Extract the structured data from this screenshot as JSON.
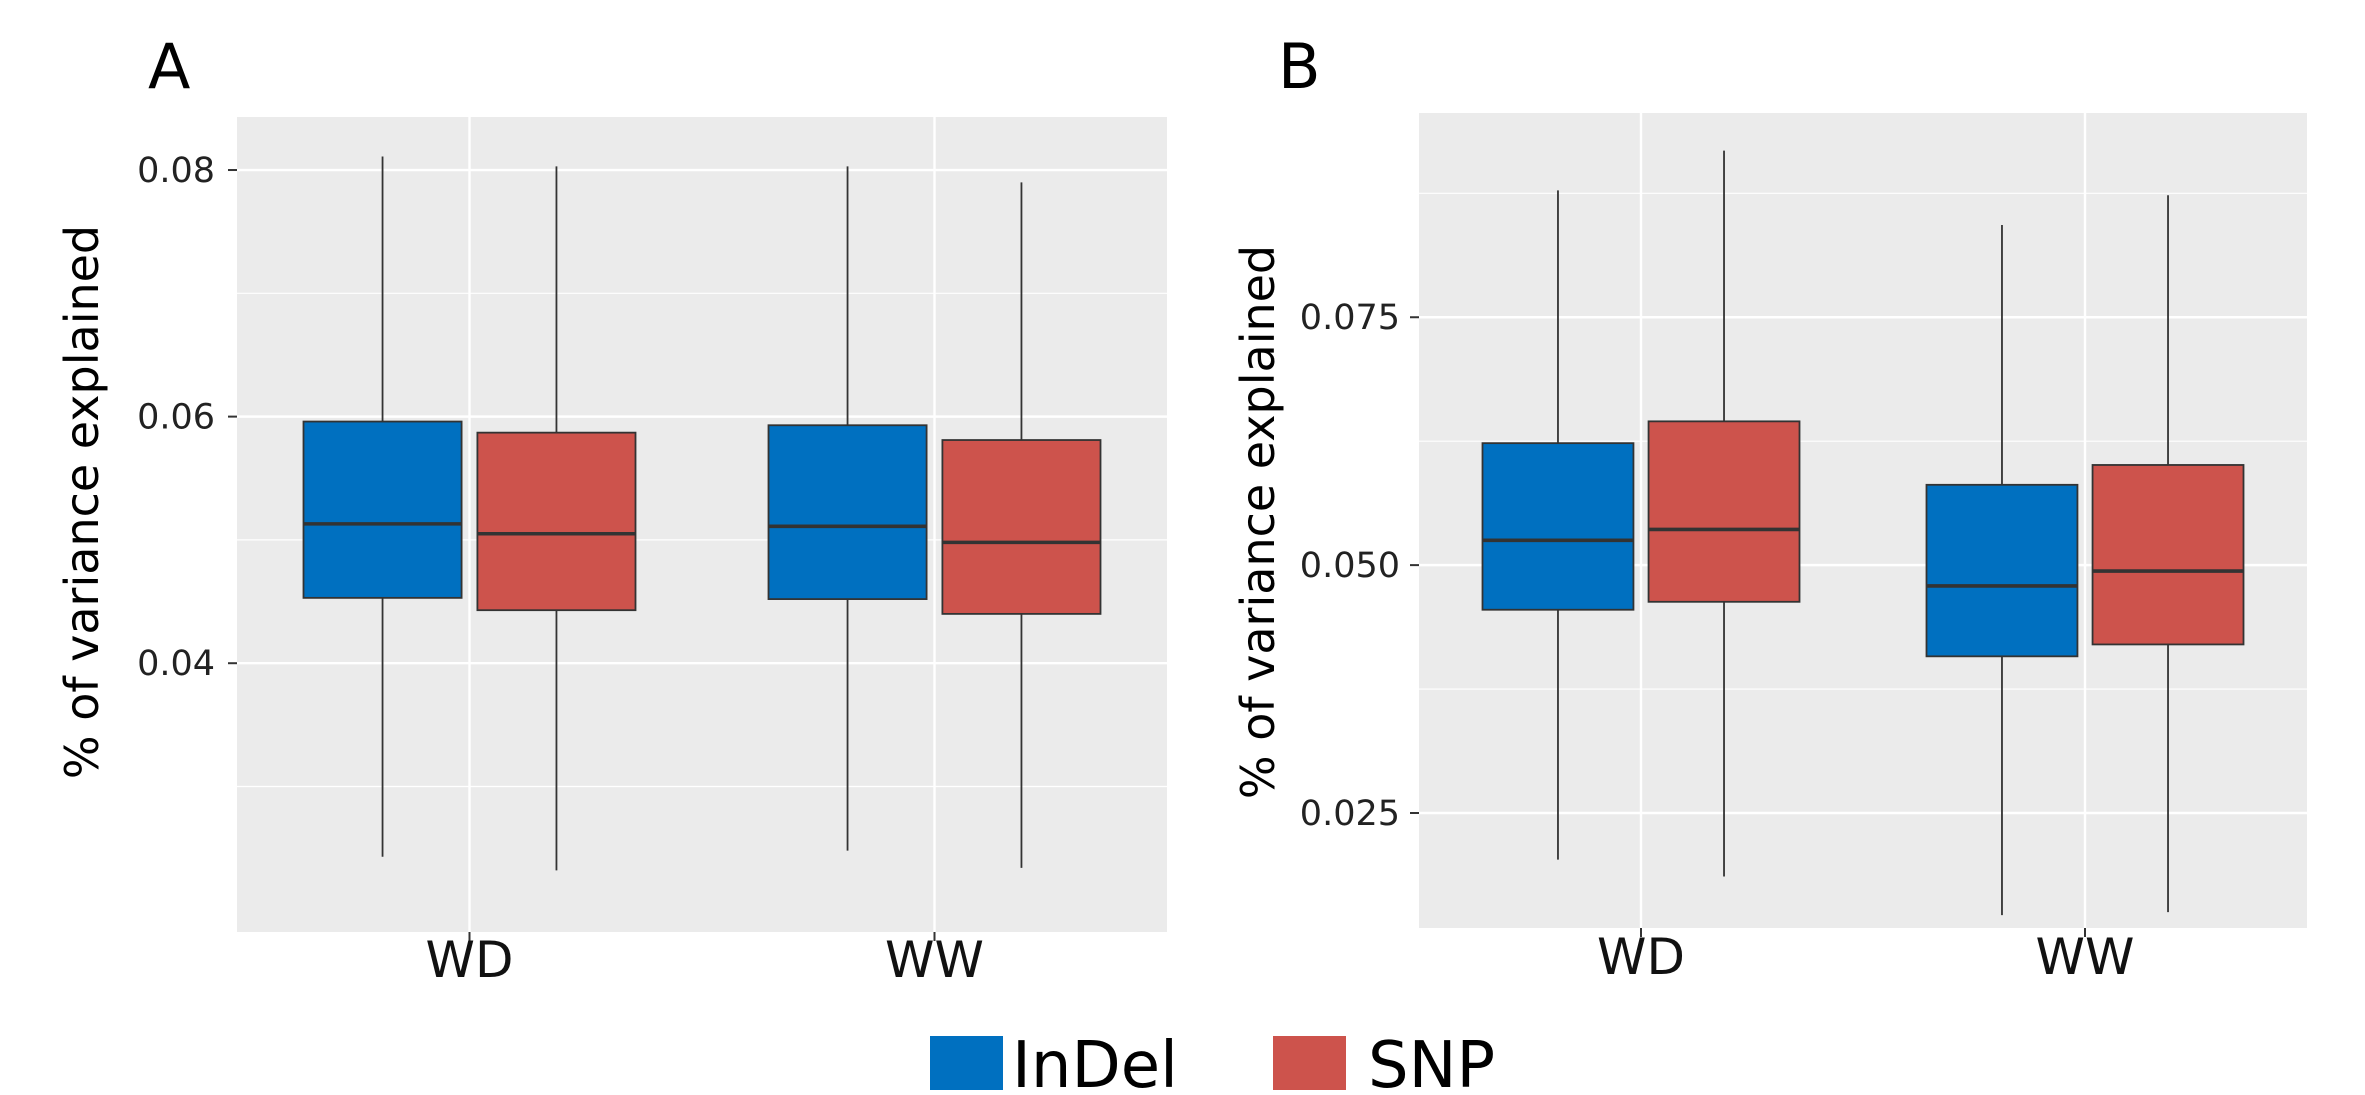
{
  "legend": [
    {
      "label": "InDel",
      "color": "#0070C0"
    },
    {
      "label": "SNP",
      "color": "#CD534C"
    }
  ],
  "chart_data": [
    {
      "type": "boxplot",
      "panel_label": "A",
      "ylabel": "% of variance explained",
      "categories": [
        "WD",
        "WW"
      ],
      "ylim": [
        0.0182,
        0.0843
      ],
      "yticks": [
        0.04,
        0.06,
        0.08
      ],
      "ytick_labels": [
        "0.04",
        "0.06",
        "0.08"
      ],
      "grid": true,
      "series": [
        {
          "name": "InDel",
          "color": "#0070C0",
          "boxes": [
            {
              "min": 0.0243,
              "q1": 0.0453,
              "median": 0.0513,
              "q3": 0.0596,
              "max": 0.0811
            },
            {
              "min": 0.0248,
              "q1": 0.0452,
              "median": 0.0511,
              "q3": 0.0593,
              "max": 0.0803
            }
          ]
        },
        {
          "name": "SNP",
          "color": "#CD534C",
          "boxes": [
            {
              "min": 0.0232,
              "q1": 0.0443,
              "median": 0.0505,
              "q3": 0.0587,
              "max": 0.0803
            },
            {
              "min": 0.0234,
              "q1": 0.044,
              "median": 0.0498,
              "q3": 0.0581,
              "max": 0.079
            }
          ]
        }
      ]
    },
    {
      "type": "boxplot",
      "panel_label": "B",
      "ylabel": "% of variance explained",
      "categories": [
        "WD",
        "WW"
      ],
      "ylim": [
        0.0134,
        0.0956
      ],
      "yticks": [
        0.025,
        0.05,
        0.075
      ],
      "ytick_labels": [
        "0.025",
        "0.050",
        "0.075"
      ],
      "grid": true,
      "series": [
        {
          "name": "InDel",
          "color": "#0070C0",
          "boxes": [
            {
              "min": 0.0203,
              "q1": 0.0455,
              "median": 0.0525,
              "q3": 0.0623,
              "max": 0.0878
            },
            {
              "min": 0.0147,
              "q1": 0.0408,
              "median": 0.0479,
              "q3": 0.0581,
              "max": 0.0843
            }
          ]
        },
        {
          "name": "SNP",
          "color": "#CD534C",
          "boxes": [
            {
              "min": 0.0186,
              "q1": 0.0463,
              "median": 0.0536,
              "q3": 0.0645,
              "max": 0.0918
            },
            {
              "min": 0.015,
              "q1": 0.042,
              "median": 0.0494,
              "q3": 0.0601,
              "max": 0.0873
            }
          ]
        }
      ]
    }
  ]
}
